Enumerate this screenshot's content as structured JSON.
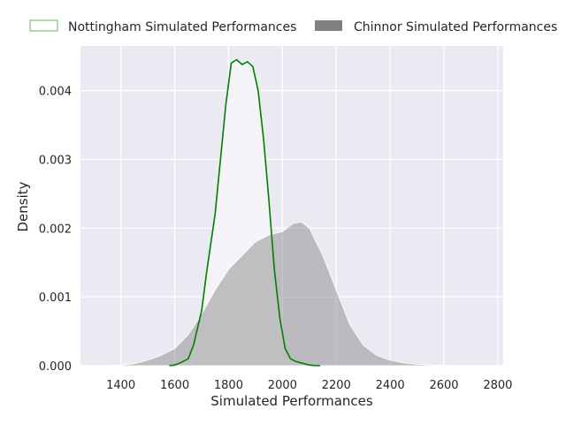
{
  "chart_data": {
    "type": "area",
    "xlabel": "Simulated Performances",
    "ylabel": "Density",
    "xlim": [
      1250,
      2820
    ],
    "ylim": [
      0,
      0.00465
    ],
    "xticks": [
      1400,
      1600,
      1800,
      2000,
      2200,
      2400,
      2600,
      2800
    ],
    "yticks": [
      0.0,
      0.001,
      0.002,
      0.003,
      0.004
    ],
    "ytick_labels": [
      "0.000",
      "0.001",
      "0.002",
      "0.003",
      "0.004"
    ],
    "grid": true,
    "legend_position": "top",
    "series": [
      {
        "name": "Nottingham Simulated Performances",
        "color": "#008000",
        "style": "outline",
        "x": [
          1580,
          1600,
          1620,
          1650,
          1670,
          1700,
          1720,
          1750,
          1770,
          1790,
          1810,
          1830,
          1850,
          1870,
          1890,
          1910,
          1930,
          1950,
          1970,
          1990,
          2010,
          2030,
          2050,
          2080,
          2100,
          2120,
          2140
        ],
        "y": [
          0.0,
          1e-05,
          4e-05,
          0.0001,
          0.0003,
          0.0008,
          0.0014,
          0.0022,
          0.003,
          0.0038,
          0.0044,
          0.00445,
          0.00438,
          0.00442,
          0.00435,
          0.004,
          0.0033,
          0.0024,
          0.0014,
          0.0007,
          0.00025,
          0.0001,
          6e-05,
          3e-05,
          1e-05,
          2e-06,
          0.0
        ]
      },
      {
        "name": "Chinnor Simulated Performances",
        "color": "#808080",
        "style": "filled",
        "x": [
          1330,
          1400,
          1450,
          1500,
          1550,
          1600,
          1650,
          1700,
          1750,
          1800,
          1850,
          1900,
          1950,
          2000,
          2040,
          2070,
          2100,
          2150,
          2200,
          2250,
          2300,
          2350,
          2400,
          2450,
          2500,
          2550,
          2600,
          2650,
          2700,
          2760
        ],
        "y": [
          0.0,
          1e-05,
          3e-05,
          8e-05,
          0.00015,
          0.00025,
          0.00045,
          0.00075,
          0.0011,
          0.0014,
          0.0016,
          0.0018,
          0.0019,
          0.00195,
          0.00207,
          0.00209,
          0.002,
          0.0016,
          0.0011,
          0.0006,
          0.0003,
          0.00015,
          8e-05,
          4e-05,
          2e-05,
          1e-05,
          5e-06,
          2e-06,
          1e-06,
          0.0
        ]
      }
    ]
  }
}
